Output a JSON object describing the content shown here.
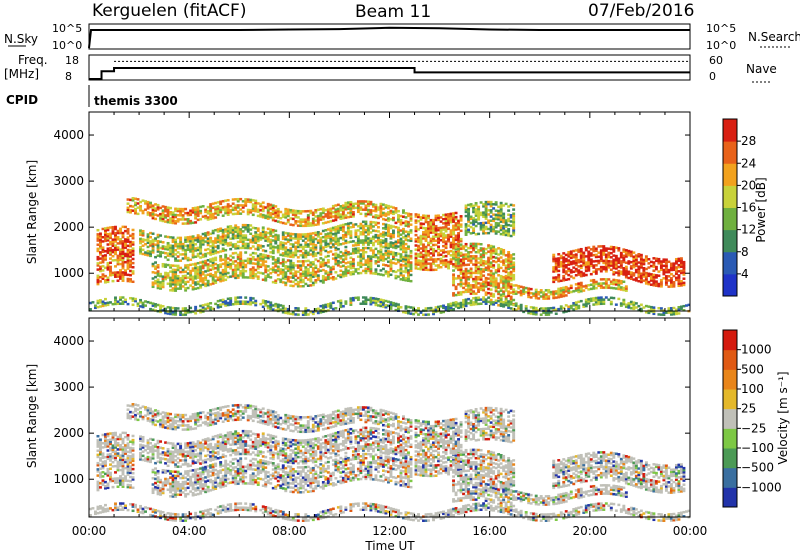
{
  "header": {
    "station": "Kerguelen (fitACF)",
    "beam": "Beam 11",
    "date": "07/Feb/2016"
  },
  "colors": {
    "power_scale": [
      "#1f33c8",
      "#2a5ab4",
      "#3f8a5a",
      "#6fb03f",
      "#c8d23a",
      "#f2a21e",
      "#e8621a",
      "#d81f12"
    ],
    "velocity_scale": [
      "#2233aa",
      "#3a6fa0",
      "#4b9a55",
      "#7dc844",
      "#c0c0b8",
      "#e4b82a",
      "#e8851a",
      "#e05a14",
      "#d41a0e"
    ],
    "line": "#000000"
  },
  "top_panels": {
    "nsky": {
      "left_label": "N.Sky",
      "left_ticks": [
        "10^5",
        "10^0"
      ],
      "right_label": "N.Search",
      "right_ticks": [
        "10^5",
        "10^0"
      ],
      "nsky_value_log": [
        0,
        4.1,
        4.1,
        4.1,
        4.2,
        4.3,
        4.6,
        4.5,
        4.2,
        4.1,
        4.1,
        4.1,
        4.1
      ]
    },
    "freq": {
      "left_label_1": "Freq.",
      "left_label_2": "[MHz]",
      "left_ticks": [
        "18",
        "8"
      ],
      "right_label": "Nave",
      "right_ticks": [
        "60",
        "0"
      ],
      "freq_steps": [
        {
          "t0": 0,
          "t1": 0.5,
          "mhz": 8
        },
        {
          "t0": 0.5,
          "t1": 1,
          "mhz": 11.5
        },
        {
          "t0": 1,
          "t1": 13,
          "mhz": 13
        },
        {
          "t0": 13,
          "t1": 24,
          "mhz": 11
        }
      ],
      "nave_level": 48
    },
    "cpid": {
      "label": "CPID",
      "program": "themis 3300"
    }
  },
  "chart_data": [
    {
      "type": "heatmap",
      "title": "Power",
      "xlabel": "",
      "ylabel": "Slant Range [km]",
      "xlim": [
        0,
        24
      ],
      "ylim": [
        180,
        4500
      ],
      "y_ticks": [
        "1000",
        "2000",
        "3000",
        "4000"
      ],
      "x_ticks": [
        "00:00",
        "04:00",
        "08:00",
        "12:00",
        "16:00",
        "20:00",
        "00:00"
      ],
      "colorbar_label": "Power [dB]",
      "colorbar_ticks": [
        "4",
        "8",
        "12",
        "16",
        "20",
        "24",
        "28"
      ],
      "colorbar_range": [
        0,
        30
      ]
    },
    {
      "type": "heatmap",
      "title": "Velocity",
      "xlabel": "Time UT",
      "ylabel": "Slant Range [km]",
      "xlim": [
        0,
        24
      ],
      "ylim": [
        180,
        4500
      ],
      "y_ticks": [
        "1000",
        "2000",
        "3000",
        "4000"
      ],
      "x_ticks": [
        "00:00",
        "04:00",
        "08:00",
        "12:00",
        "16:00",
        "20:00",
        "00:00"
      ],
      "colorbar_label": "Velocity [m s⁻¹]",
      "colorbar_ticks": [
        "1000",
        "500",
        "100",
        "25",
        "−25",
        "−100",
        "−500",
        "−1000"
      ]
    }
  ]
}
